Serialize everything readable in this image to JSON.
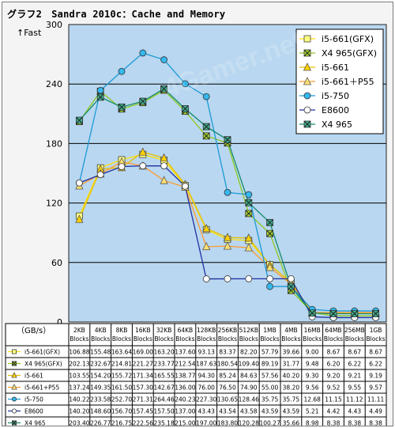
{
  "title": "グラフ2　Sandra 2010c：Cache and Memory",
  "y_axis_title": "↑Fast",
  "unit_label": "（GB/s）",
  "watermark": "4Gamer.net",
  "colors": {
    "plot_bg": "#b9d7f0",
    "frame_bg": "#f4f4f4"
  },
  "chart_data": {
    "type": "line",
    "title": "グラフ2　Sandra 2010c：Cache and Memory",
    "ylabel": "↑Fast",
    "yunit": "（GB/s）",
    "ylim": [
      0,
      300
    ],
    "yticks": [
      0,
      60,
      120,
      180,
      240,
      300
    ],
    "grid": true,
    "legend_position": "top-right",
    "categories": [
      [
        "2KB",
        "Blocks"
      ],
      [
        "4KB",
        "Blocks"
      ],
      [
        "8KB",
        "Blocks"
      ],
      [
        "16KB",
        "Blocks"
      ],
      [
        "32KB",
        "Blocks"
      ],
      [
        "64KB",
        "Blocks"
      ],
      [
        "128KB",
        "Blocks"
      ],
      [
        "256KB",
        "Blocks"
      ],
      [
        "512KB",
        "Blocks"
      ],
      [
        "1MB",
        "Blocks"
      ],
      [
        "4MB",
        "Blocks"
      ],
      [
        "16MB",
        "Blocks"
      ],
      [
        "64MB",
        "Blocks"
      ],
      [
        "256MB",
        "Blocks"
      ],
      [
        "1GB",
        "Blocks"
      ]
    ],
    "series": [
      {
        "name": "i5-661(GFX)",
        "table_name": "i5-661(GFX)",
        "color": "#ffe000",
        "marker": "square",
        "marker_fill": "#ffff80",
        "values": [
          106.88,
          155.48,
          163.64,
          169.0,
          163.2,
          137.6,
          93.13,
          83.37,
          82.2,
          57.79,
          39.66,
          9.0,
          8.67,
          8.67,
          8.67
        ]
      },
      {
        "name": "X4 965(GFX)",
        "table_name": "X4 965(GFX)",
        "color": "#8ec820",
        "marker": "xsquare",
        "marker_fill": "#a8d830",
        "values": [
          202.13,
          232.67,
          214.81,
          221.27,
          233.77,
          212.54,
          187.63,
          180.54,
          109.4,
          89.19,
          31.77,
          9.48,
          6.2,
          6.22,
          6.22
        ]
      },
      {
        "name": "i5-661",
        "table_name": "i5-661",
        "color": "#e6c000",
        "marker": "triangle",
        "marker_fill": "#ffd000",
        "values": [
          103.55,
          154.2,
          155.72,
          171.34,
          165.55,
          138.77,
          94.3,
          85.24,
          84.63,
          57.56,
          40.2,
          9.3,
          9.2,
          9.21,
          9.19
        ]
      },
      {
        "name": "i5-661＋P55",
        "table_name": "i5-661+P55",
        "color": "#ff9a2e",
        "marker": "triangle",
        "marker_fill": "#ffe070",
        "values": [
          137.24,
          149.35,
          161.5,
          157.3,
          142.67,
          136.0,
          76.0,
          76.5,
          74.9,
          55.0,
          38.2,
          9.56,
          9.52,
          9.55,
          9.57
        ]
      },
      {
        "name": "i5-750",
        "table_name": "i5-750",
        "color": "#1a9ad6",
        "marker": "circle",
        "marker_fill": "#35b8ee",
        "values": [
          140.22,
          233.58,
          252.7,
          271.31,
          264.46,
          240.23,
          227.3,
          130.65,
          128.46,
          35.75,
          35.75,
          12.68,
          11.15,
          11.12,
          11.11
        ]
      },
      {
        "name": "E8600",
        "table_name": "E8600",
        "color": "#2030a0",
        "marker": "circle",
        "marker_fill": "#ffffff",
        "values": [
          140.2,
          148.6,
          156.7,
          157.45,
          157.5,
          137.0,
          43.43,
          43.54,
          43.58,
          43.59,
          43.59,
          5.21,
          4.42,
          4.43,
          4.49
        ]
      },
      {
        "name": "X4 965",
        "table_name": "X4 965",
        "color": "#138a6b",
        "marker": "xsquare",
        "marker_fill": "#40b090",
        "values": [
          203.4,
          226.77,
          216.75,
          222.56,
          235.18,
          215.0,
          197.0,
          183.8,
          120.28,
          100.27,
          35.66,
          8.98,
          8.38,
          8.38,
          8.38
        ]
      }
    ]
  }
}
